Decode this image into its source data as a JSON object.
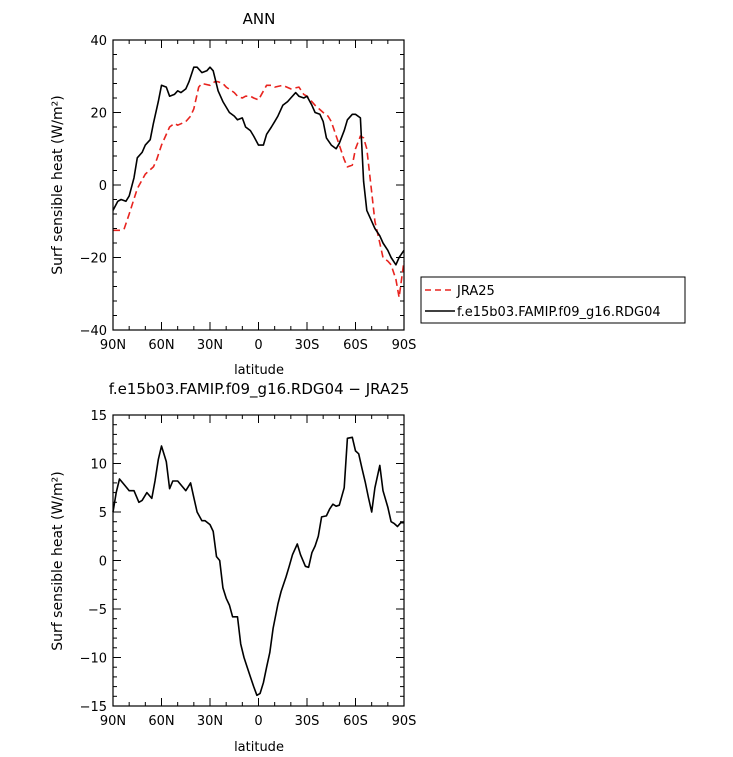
{
  "chart_data": [
    {
      "type": "line",
      "title": "ANN",
      "xlabel": "latitude",
      "ylabel": "Surf sensible heat (W/m²)",
      "xlim": [
        90,
        -90
      ],
      "ylim": [
        -40,
        40
      ],
      "x_ticks": [
        {
          "value": 90,
          "label": "90N"
        },
        {
          "value": 60,
          "label": "60N"
        },
        {
          "value": 30,
          "label": "30N"
        },
        {
          "value": 0,
          "label": "0"
        },
        {
          "value": -30,
          "label": "30S"
        },
        {
          "value": -60,
          "label": "60S"
        },
        {
          "value": -90,
          "label": "90S"
        }
      ],
      "y_ticks": [
        -40,
        -20,
        0,
        20,
        40
      ],
      "legend": "outside-right",
      "grid": false,
      "series": [
        {
          "name": "JRA25",
          "color": "#e8241f",
          "style": "dashed",
          "x": [
            90,
            85,
            83,
            80,
            75,
            70,
            65,
            63,
            60,
            55,
            52,
            50,
            45,
            42,
            40,
            37,
            35,
            30,
            27,
            25,
            22,
            20,
            15,
            13,
            10,
            8,
            5,
            3,
            0,
            -5,
            -8,
            -10,
            -15,
            -20,
            -25,
            -28,
            -30,
            -35,
            -40,
            -43,
            -45,
            -50,
            -53,
            -55,
            -58,
            -60,
            -63,
            -65,
            -67,
            -70,
            -72,
            -75,
            -77,
            -80,
            -82,
            -85,
            -87,
            -90
          ],
          "y": [
            -12.5,
            -12.5,
            -12,
            -8,
            -1,
            3,
            5,
            7,
            11,
            16,
            17,
            16.5,
            17.5,
            19,
            21,
            27,
            28,
            27.5,
            28.5,
            28.5,
            28,
            27,
            25.5,
            24.5,
            24,
            24.5,
            24.5,
            24,
            23.5,
            27.5,
            27.5,
            27,
            27.5,
            26.5,
            27,
            25,
            24.5,
            22,
            20,
            19,
            17.5,
            11,
            7,
            5,
            5.5,
            10,
            13.5,
            13,
            10,
            -2,
            -10,
            -16,
            -20,
            -21,
            -22,
            -26,
            -31,
            -21
          ]
        },
        {
          "name": "f.e15b03.FAMIP.f09_g16.RDG04",
          "color": "#000000",
          "style": "solid",
          "x": [
            90,
            87,
            85,
            82,
            80,
            77,
            75,
            72,
            70,
            67,
            65,
            62,
            60,
            57,
            55,
            52,
            50,
            48,
            45,
            43,
            40,
            38,
            35,
            32,
            30,
            28,
            25,
            22,
            20,
            18,
            15,
            13,
            10,
            8,
            5,
            3,
            0,
            -3,
            -5,
            -8,
            -10,
            -12,
            -15,
            -18,
            -20,
            -23,
            -25,
            -28,
            -30,
            -33,
            -35,
            -38,
            -40,
            -42,
            -45,
            -48,
            -50,
            -53,
            -55,
            -58,
            -60,
            -63,
            -65,
            -67,
            -70,
            -72,
            -75,
            -77,
            -80,
            -82,
            -85,
            -87,
            -90
          ],
          "y": [
            -7,
            -4.5,
            -4,
            -4.5,
            -3,
            2,
            7.5,
            9,
            11,
            12.5,
            17,
            23,
            27.5,
            27,
            24.5,
            25,
            26,
            25.5,
            26.5,
            28.5,
            32.5,
            32.5,
            31,
            31.5,
            32.5,
            31.5,
            26,
            23,
            21.5,
            20,
            19,
            18,
            18.5,
            16,
            15,
            13.5,
            11,
            11,
            14,
            16,
            17.5,
            19,
            22,
            23,
            24,
            25.5,
            24.5,
            24,
            24.5,
            22,
            20,
            19.5,
            17.5,
            13,
            11,
            10,
            11.5,
            15,
            18,
            19.5,
            19.5,
            18.5,
            1,
            -7,
            -10,
            -12,
            -14,
            -16,
            -18,
            -20,
            -22,
            -20,
            -18
          ]
        }
      ]
    },
    {
      "type": "line",
      "title": "f.e15b03.FAMIP.f09_g16.RDG04 − JRA25",
      "xlabel": "latitude",
      "ylabel": "Surf sensible heat (W/m²)",
      "xlim": [
        90,
        -90
      ],
      "ylim": [
        -15,
        15
      ],
      "x_ticks": [
        {
          "value": 90,
          "label": "90N"
        },
        {
          "value": 60,
          "label": "60N"
        },
        {
          "value": 30,
          "label": "30N"
        },
        {
          "value": 0,
          "label": "0"
        },
        {
          "value": -30,
          "label": "30S"
        },
        {
          "value": -60,
          "label": "60S"
        },
        {
          "value": -90,
          "label": "90S"
        }
      ],
      "y_ticks": [
        -15,
        -10,
        -5,
        0,
        5,
        10,
        15
      ],
      "grid": false,
      "series": [
        {
          "color": "#000000",
          "style": "solid",
          "x": [
            90,
            88,
            86,
            83,
            80,
            77,
            74,
            72,
            69,
            66,
            64,
            62,
            60,
            57,
            55,
            53,
            50,
            47,
            45,
            42,
            40,
            38,
            35,
            33,
            30,
            28,
            26,
            24,
            22,
            20,
            18,
            16,
            13,
            11,
            9,
            7,
            5,
            3,
            1,
            -1,
            -3,
            -5,
            -7,
            -9,
            -12,
            -14,
            -17,
            -19,
            -21,
            -24,
            -26,
            -29,
            -31,
            -33,
            -35,
            -37,
            -39,
            -42,
            -44,
            -46,
            -48,
            -50,
            -53,
            -55,
            -58,
            -60,
            -62,
            -64,
            -66,
            -68,
            -70,
            -72,
            -75,
            -77,
            -80,
            -82,
            -84,
            -86,
            -88,
            -90
          ],
          "y": [
            5,
            7,
            8.4,
            7.8,
            7.2,
            7.2,
            6,
            6.2,
            7,
            6.4,
            8.2,
            10.4,
            11.8,
            10.2,
            7.4,
            8.2,
            8.2,
            7.6,
            7.2,
            8,
            6.5,
            5,
            4.1,
            4.1,
            3.7,
            3,
            0.4,
            0,
            -2.8,
            -3.9,
            -4.6,
            -5.8,
            -5.8,
            -8.6,
            -10,
            -11,
            -12,
            -13,
            -13.9,
            -13.7,
            -12.6,
            -11,
            -9.5,
            -7,
            -4.5,
            -3.2,
            -1.7,
            -0.6,
            0.6,
            1.7,
            0.6,
            -0.6,
            -0.7,
            0.8,
            1.5,
            2.5,
            4.5,
            4.6,
            5.3,
            5.8,
            5.6,
            5.7,
            7.5,
            12.6,
            12.7,
            11.3,
            11,
            9.5,
            8.1,
            6.5,
            5,
            7.5,
            9.8,
            7.2,
            5.5,
            4,
            3.8,
            3.5,
            3.9,
            3.9
          ]
        }
      ]
    }
  ]
}
